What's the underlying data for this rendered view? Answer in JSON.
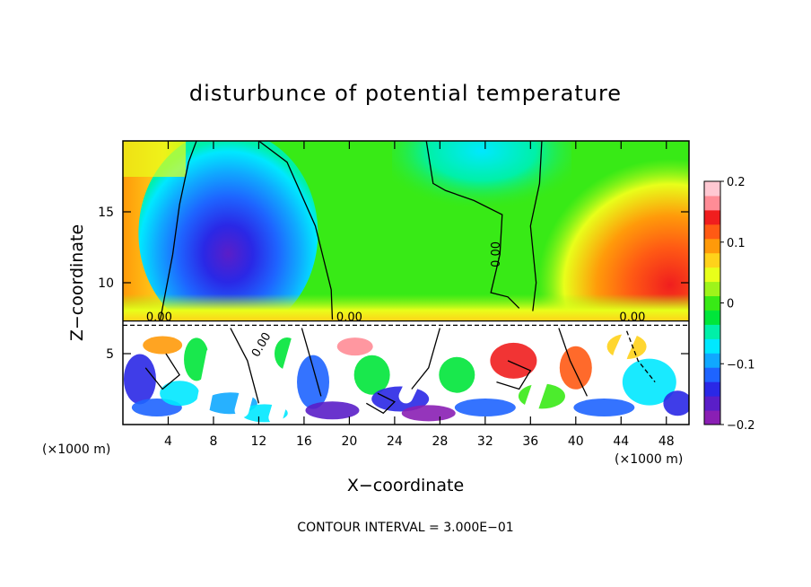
{
  "chart_data": {
    "type": "heatmap",
    "title": "disturbunce of potential temperature",
    "xlabel": "X−coordinate",
    "ylabel": "Z−coordinate",
    "x_unit_label_left": "(×1000 m)",
    "x_unit_label_right": "(×1000 m)",
    "xlim": [
      0,
      50
    ],
    "ylim": [
      0,
      20
    ],
    "x_ticks": [
      4,
      8,
      12,
      16,
      20,
      24,
      28,
      32,
      36,
      40,
      44,
      48
    ],
    "x_tick_labels": [
      "4",
      "8",
      "12",
      "16",
      "20",
      "24",
      "28",
      "32",
      "36",
      "40",
      "44",
      "48"
    ],
    "y_ticks": [
      5,
      10,
      15
    ],
    "y_tick_labels": [
      "5",
      "10",
      "15"
    ],
    "colorbar": {
      "range": [
        -0.2,
        0.2
      ],
      "ticks": [
        0.2,
        0.1,
        0,
        -0.1,
        -0.2
      ],
      "tick_labels": [
        "0.2",
        "0.1",
        "0",
        "−0.1",
        "−0.2"
      ],
      "colors": [
        "#8a1fb4",
        "#5a1ec8",
        "#2a28e6",
        "#1e64ff",
        "#10a8ff",
        "#00e8ff",
        "#00f0a8",
        "#00e63a",
        "#38ea16",
        "#9ef41a",
        "#e8ff1a",
        "#ffd21a",
        "#ff9a0a",
        "#ff5a14",
        "#f01e1e",
        "#ff8c96",
        "#ffc8d2"
      ]
    },
    "contour_labels": [
      {
        "text": "0.00",
        "x": 3.2,
        "z": 7.3,
        "rotate": 0
      },
      {
        "text": "0.00",
        "x": 20.0,
        "z": 7.3,
        "rotate": 0
      },
      {
        "text": "0.00",
        "x": 45.0,
        "z": 7.3,
        "rotate": 0
      },
      {
        "text": "0.00",
        "x": 33.3,
        "z": 12.0,
        "rotate": -90
      },
      {
        "text": "0.00",
        "x": 12.5,
        "z": 5.5,
        "rotate": -60
      }
    ],
    "footnote": "CONTOUR INTERVAL = 3.000E−01"
  }
}
